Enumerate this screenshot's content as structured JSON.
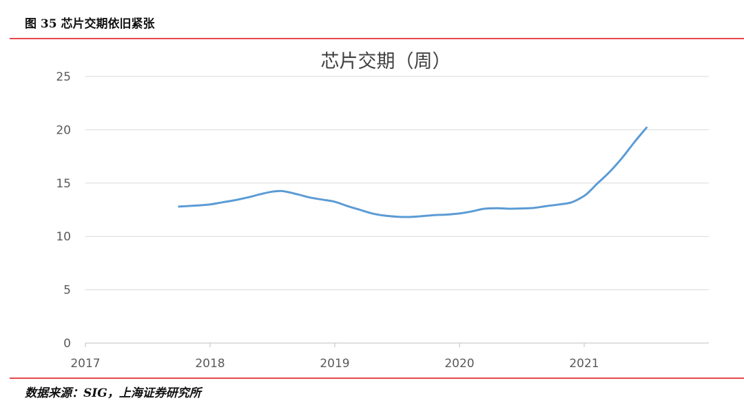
{
  "figure": {
    "title": "图 35 芯片交期依旧紧张",
    "source": "数据来源：SIG，上海证券研究所"
  },
  "chart_data": {
    "type": "line",
    "title": "芯片交期（周）",
    "xlabel": "",
    "ylabel": "",
    "xlim": [
      2017,
      2022.0
    ],
    "ylim": [
      0,
      25
    ],
    "x_ticks": [
      "2017",
      "2018",
      "2019",
      "2020",
      "2021"
    ],
    "y_ticks": [
      "0",
      "5",
      "10",
      "15",
      "20",
      "25"
    ],
    "grid": "horizontal",
    "legend": "none",
    "line_color": "#5b9bd5",
    "series": [
      {
        "x": [
          2017.75,
          2017.9,
          2018.0,
          2018.1,
          2018.2,
          2018.3,
          2018.4,
          2018.5,
          2018.58,
          2018.7,
          2018.8,
          2018.9,
          2019.0,
          2019.1,
          2019.2,
          2019.3,
          2019.4,
          2019.5,
          2019.6,
          2019.7,
          2019.8,
          2019.9,
          2020.0,
          2020.1,
          2020.2,
          2020.3,
          2020.4,
          2020.5,
          2020.6,
          2020.7,
          2020.8,
          2020.9,
          2021.0,
          2021.05,
          2021.1,
          2021.2,
          2021.3,
          2021.4,
          2021.5
        ],
        "values": [
          12.8,
          12.9,
          13.0,
          13.2,
          13.4,
          13.65,
          13.95,
          14.2,
          14.25,
          13.95,
          13.65,
          13.45,
          13.25,
          12.85,
          12.5,
          12.15,
          11.95,
          11.85,
          11.82,
          11.9,
          12.0,
          12.05,
          12.15,
          12.35,
          12.6,
          12.65,
          12.6,
          12.62,
          12.68,
          12.85,
          13.0,
          13.2,
          13.8,
          14.3,
          14.9,
          16.0,
          17.3,
          18.8,
          20.2
        ]
      }
    ]
  }
}
